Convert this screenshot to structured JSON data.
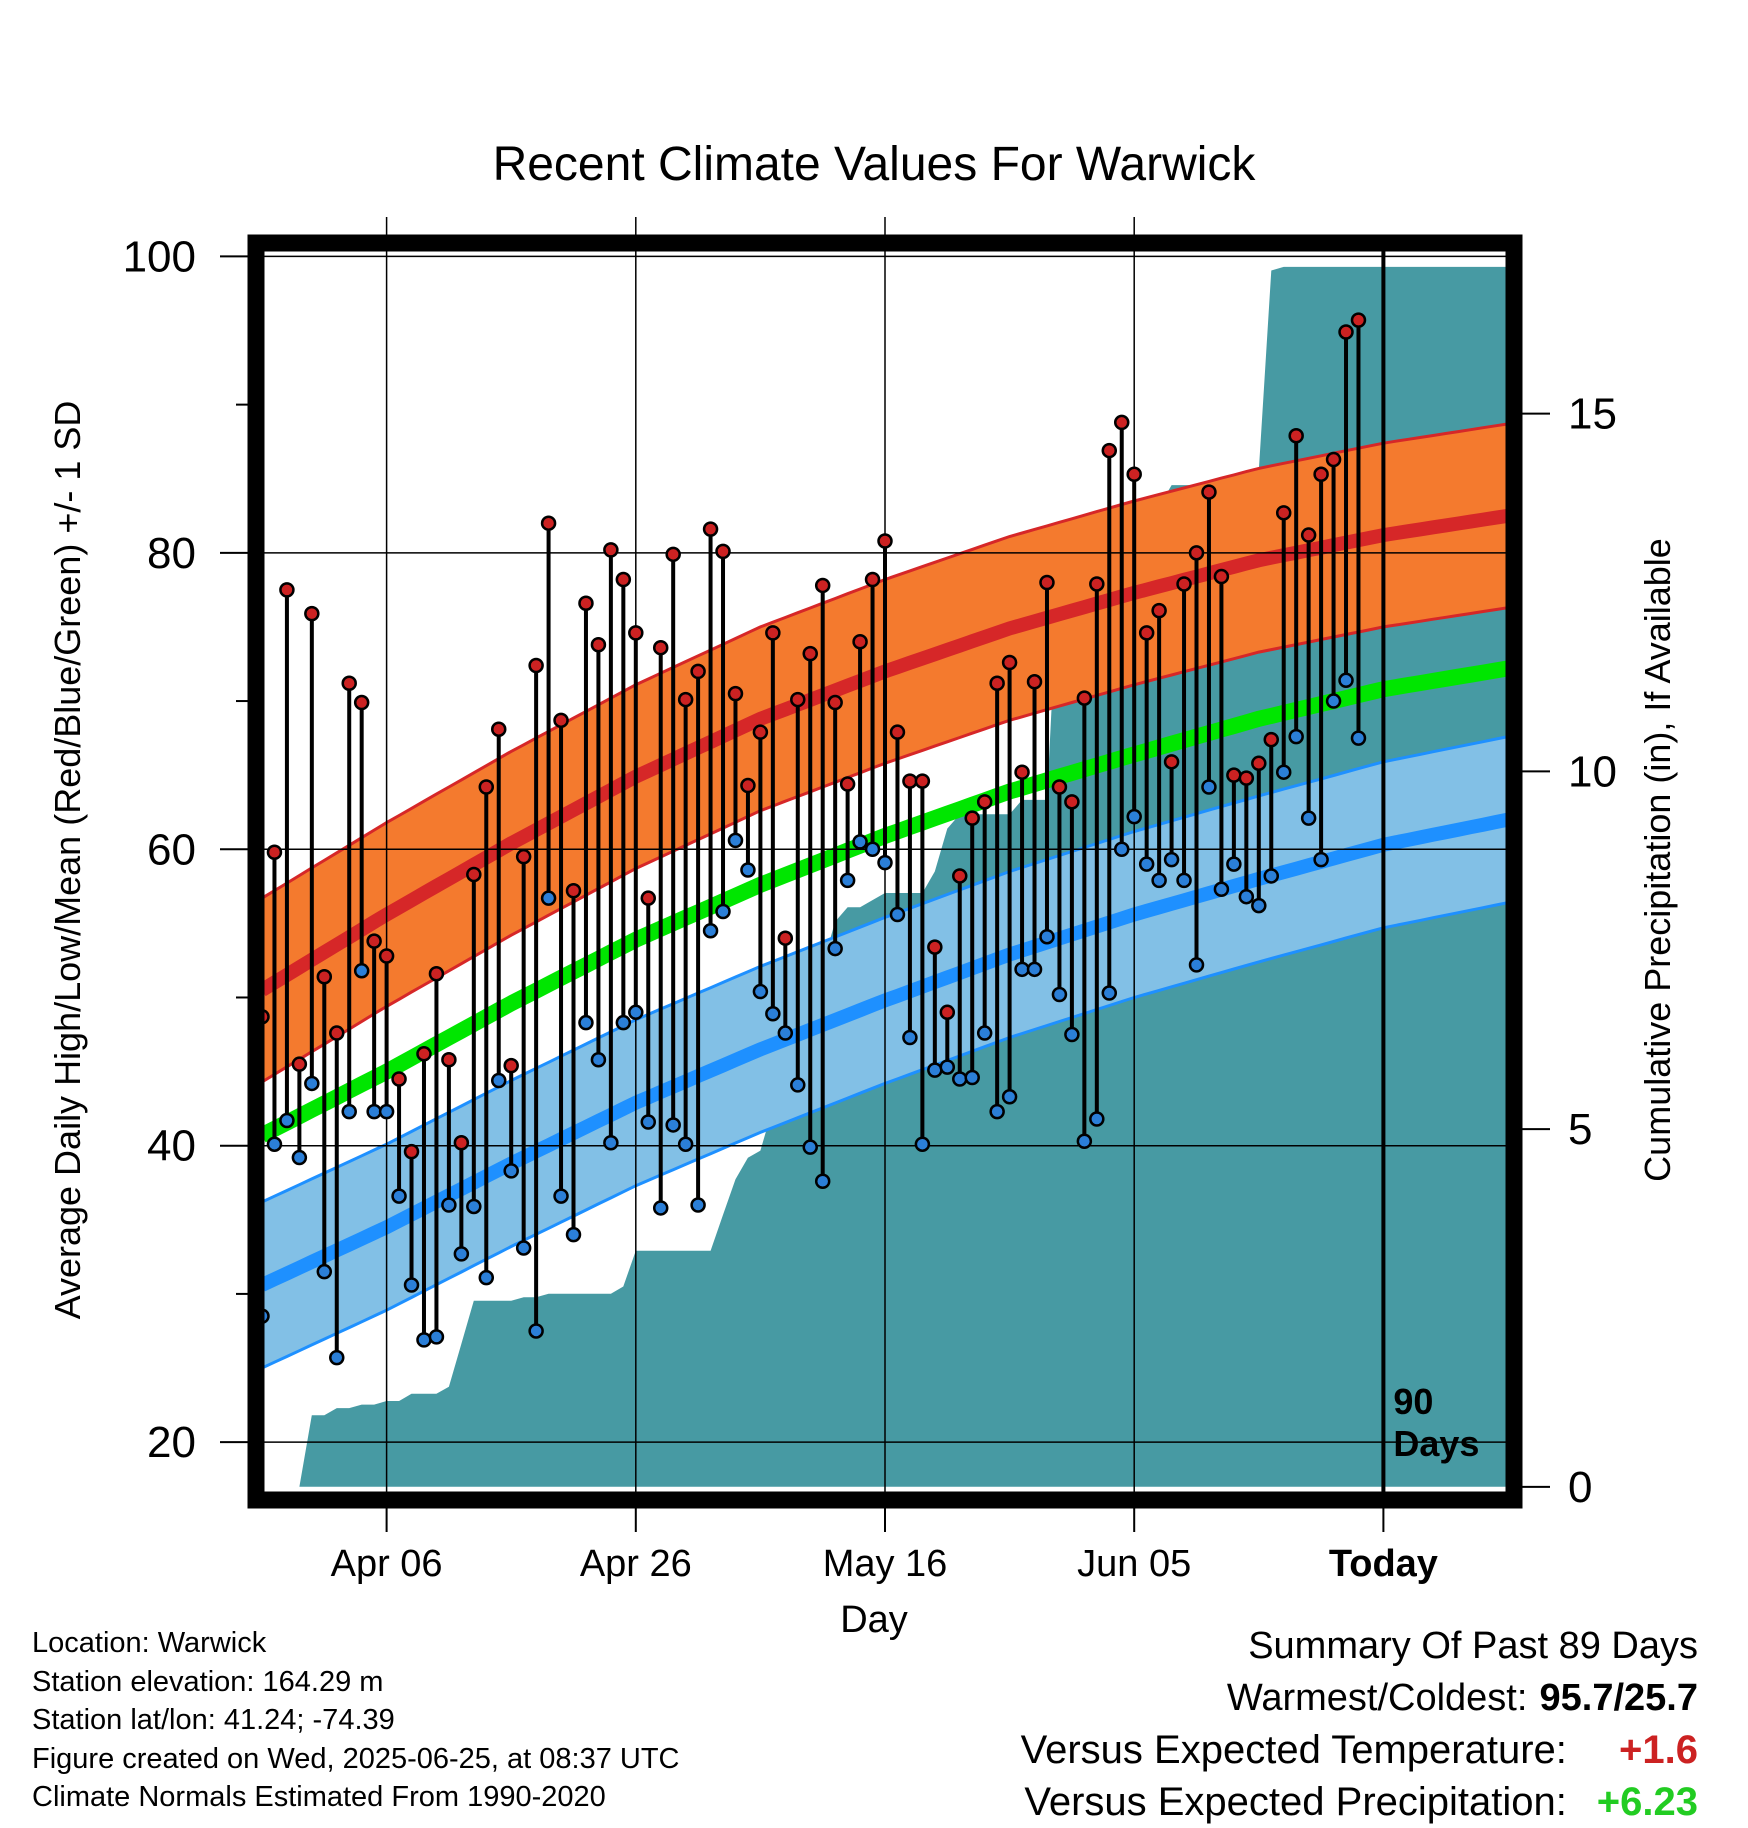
{
  "chart_data": {
    "type": "line",
    "title": "Recent Climate Values For Warwick",
    "xlabel": "Day",
    "ylabel": "Average Daily High/Low/Mean (Red/Blue/Green) +/- 1 SD",
    "y2label": "Cumulative Precipitation (in), If Available",
    "x_ticks": [
      {
        "label": "Apr 06",
        "day": 10
      },
      {
        "label": "Apr 26",
        "day": 30
      },
      {
        "label": "May 16",
        "day": 50
      },
      {
        "label": "Jun 05",
        "day": 70
      },
      {
        "label": "Today",
        "day": 90
      }
    ],
    "xlim": [
      0,
      100
    ],
    "ylim": [
      16.5,
      100.5
    ],
    "y_ticks": [
      20,
      40,
      60,
      80,
      100
    ],
    "y2lim": [
      -0.1,
      17.3
    ],
    "y2_ticks": [
      0,
      5,
      10,
      15
    ],
    "today_marker": {
      "day": 90,
      "label_line1": "90",
      "label_line2": "Days"
    },
    "normals": {
      "days": [
        0,
        10,
        20,
        30,
        40,
        50,
        60,
        70,
        80,
        90,
        100
      ],
      "high_mean": [
        50.5,
        55.6,
        60.4,
        64.9,
        68.8,
        72.0,
        74.9,
        77.3,
        79.5,
        81.2,
        82.5
      ],
      "high_sd": 6.2,
      "low_mean": [
        30.6,
        34.5,
        38.8,
        42.9,
        46.5,
        49.8,
        52.9,
        55.6,
        58.0,
        60.3,
        62.0
      ],
      "low_sd": 5.6,
      "mean": [
        40.7,
        45.0,
        49.6,
        53.9,
        57.6,
        60.9,
        63.9,
        66.4,
        68.8,
        70.8,
        72.2
      ]
    },
    "daily": {
      "start_day": 0,
      "high": [
        48.7,
        59.8,
        77.5,
        45.5,
        75.9,
        51.4,
        47.6,
        71.2,
        69.9,
        53.8,
        52.8,
        44.5,
        39.6,
        46.2,
        51.6,
        45.8,
        40.2,
        58.3,
        64.2,
        68.1,
        45.4,
        59.5,
        72.4,
        82.0,
        68.7,
        57.2,
        76.6,
        73.8,
        80.2,
        78.2,
        74.6,
        56.7,
        73.6,
        79.9,
        70.1,
        72.0,
        81.6,
        80.1,
        70.5,
        64.3,
        67.9,
        74.6,
        54.0,
        70.1,
        73.2,
        77.8,
        69.9,
        64.4,
        74.0,
        78.2,
        80.8,
        67.9,
        64.6,
        64.6,
        53.4,
        49.0,
        58.2,
        62.1,
        63.2,
        71.2,
        72.6,
        65.2,
        71.3,
        78.0,
        64.2,
        63.2,
        70.2,
        77.9,
        86.9,
        88.8,
        85.3,
        74.6,
        76.1,
        65.9,
        77.9,
        80.0,
        84.1,
        78.4,
        65.0,
        64.8,
        65.8,
        67.4,
        82.7,
        87.9,
        81.2,
        85.3,
        86.3,
        94.9,
        95.7
      ],
      "low": [
        28.5,
        40.1,
        41.7,
        39.2,
        44.2,
        31.5,
        25.7,
        42.3,
        51.8,
        42.3,
        42.3,
        36.6,
        30.6,
        26.9,
        27.1,
        36.0,
        32.7,
        35.9,
        31.1,
        44.4,
        38.3,
        33.1,
        27.5,
        56.7,
        36.6,
        34.0,
        48.3,
        45.8,
        40.2,
        48.3,
        49.0,
        41.6,
        35.8,
        41.4,
        40.1,
        36.0,
        54.5,
        55.8,
        60.6,
        58.6,
        50.4,
        48.9,
        47.6,
        44.1,
        39.9,
        37.6,
        53.3,
        57.9,
        60.5,
        60.0,
        59.1,
        55.6,
        47.3,
        40.1,
        45.1,
        45.3,
        44.5,
        44.6,
        47.6,
        42.3,
        43.3,
        51.9,
        51.9,
        54.1,
        50.2,
        47.5,
        40.3,
        41.8,
        50.3,
        60.0,
        62.2,
        59.0,
        57.9,
        59.3,
        57.9,
        52.2,
        64.2,
        57.3,
        59.0,
        56.8,
        56.2,
        58.2,
        65.2,
        67.6,
        62.1,
        59.3,
        70.0,
        71.4,
        67.5
      ]
    },
    "precip_cumulative": [
      0,
      0,
      0,
      0,
      1.0,
      1.0,
      1.1,
      1.1,
      1.15,
      1.15,
      1.2,
      1.2,
      1.3,
      1.3,
      1.3,
      1.4,
      2.0,
      2.6,
      2.6,
      2.6,
      2.6,
      2.65,
      2.65,
      2.7,
      2.7,
      2.7,
      2.7,
      2.7,
      2.7,
      2.8,
      3.3,
      3.3,
      3.3,
      3.3,
      3.3,
      3.3,
      3.3,
      3.8,
      4.3,
      4.6,
      4.7,
      5.3,
      7.3,
      7.3,
      7.3,
      7.3,
      7.9,
      8.1,
      8.1,
      8.2,
      8.3,
      8.3,
      8.3,
      8.3,
      8.6,
      9.2,
      9.4,
      9.4,
      9.4,
      9.4,
      9.4,
      9.6,
      9.6,
      9.6,
      13.1,
      13.1,
      13.1,
      13.1,
      13.1,
      13.3,
      13.4,
      13.7,
      13.7,
      14.0,
      14.0,
      14.0,
      14.0,
      14.0,
      14.1,
      14.2,
      14.2,
      17.0,
      17.05,
      17.05,
      17.05,
      17.05,
      17.05,
      17.05,
      17.05,
      17.05,
      17.05,
      17.05,
      17.05,
      17.05,
      17.05,
      17.05,
      17.05,
      17.05,
      17.05,
      17.05,
      17.05
    ],
    "colors": {
      "high_line": "#d62728",
      "high_band": "#f47a2e",
      "low_line": "#1e90ff",
      "low_band": "#82c0e6",
      "mean_line": "#00e600",
      "precip_fill": "#479aa3",
      "high_marker": "#cc2222",
      "low_marker": "#2b7fd8"
    }
  },
  "info": {
    "location": "Location: Warwick",
    "elevation": "Station elevation: 164.29 m",
    "latlon": "Station lat/lon: 41.24; -74.39",
    "created": "Figure created on Wed, 2025-06-25, at 08:37 UTC",
    "normals": "Climate Normals Estimated From 1990-2020"
  },
  "summary": {
    "title": "Summary Of Past 89 Days",
    "warm_cold_label": "Warmest/Coldest:",
    "warm_cold_value": "95.7/25.7",
    "temp_label": "Versus Expected Temperature:",
    "temp_value": "+1.6",
    "temp_color": "#cc2222",
    "precip_label": "Versus Expected Precipitation:",
    "precip_value": "+6.23",
    "precip_color": "#22cc22"
  }
}
